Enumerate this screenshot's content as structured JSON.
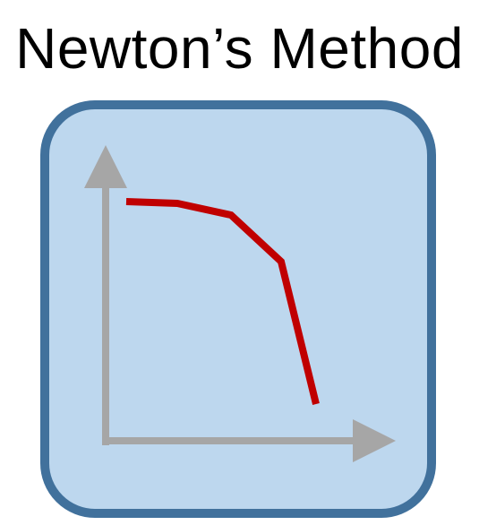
{
  "title": "Newton’s Method",
  "colors": {
    "panel_fill": "#bdd7ee",
    "panel_border": "#41719c",
    "axis": "#a6a6a6",
    "curve": "#c00000"
  },
  "icon": "descending-curve-chart-icon"
}
